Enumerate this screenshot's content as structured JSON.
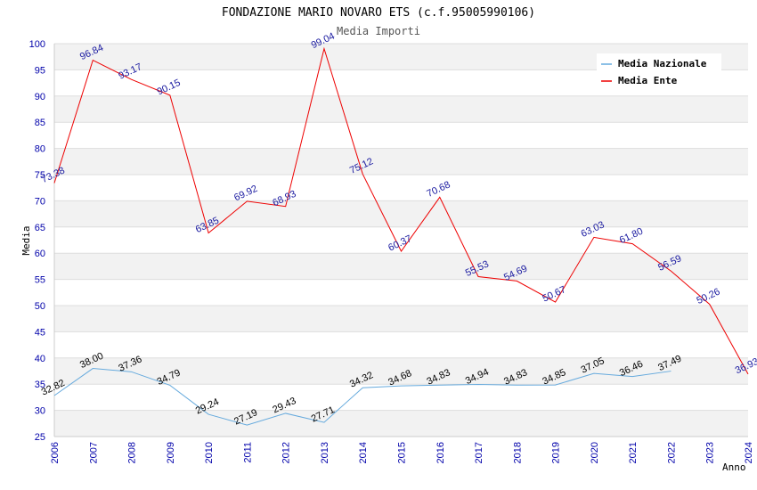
{
  "chart_data": {
    "type": "line",
    "title": "FONDAZIONE MARIO NOVARO ETS (c.f.95005990106)",
    "subtitle": "Media Importi",
    "xlabel": "Anno",
    "ylabel": "Media",
    "ylim": [
      25,
      100
    ],
    "yticks": [
      "25",
      "30",
      "35",
      "40",
      "45",
      "50",
      "55",
      "60",
      "65",
      "70",
      "75",
      "80",
      "85",
      "90",
      "95",
      "100"
    ],
    "categories": [
      "2006",
      "2007",
      "2008",
      "2009",
      "2010",
      "2011",
      "2012",
      "2013",
      "2014",
      "2015",
      "2016",
      "2017",
      "2018",
      "2019",
      "2020",
      "2021",
      "2022",
      "2023",
      "2024"
    ],
    "legend_position": "top-right",
    "series": [
      {
        "name": "Media Nazionale",
        "color": "#66aadd",
        "values": [
          32.82,
          38.0,
          37.36,
          34.79,
          29.24,
          27.19,
          29.43,
          27.71,
          34.32,
          34.68,
          34.83,
          34.94,
          34.83,
          34.85,
          37.05,
          36.46,
          37.49,
          null,
          null
        ],
        "labels": [
          "32.82",
          "38.00",
          "37.36",
          "34.79",
          "29.24",
          "27.19",
          "29.43",
          "27.71",
          "34.32",
          "34.68",
          "34.83",
          "34.94",
          "34.83",
          "34.85",
          "37.05",
          "36.46",
          "37.49",
          "",
          ""
        ]
      },
      {
        "name": "Media Ente",
        "color": "#ee0000",
        "values": [
          73.38,
          96.84,
          93.17,
          90.15,
          63.85,
          69.92,
          68.93,
          99.04,
          75.12,
          60.37,
          70.68,
          55.53,
          54.69,
          50.67,
          63.03,
          61.8,
          56.59,
          50.26,
          36.93
        ],
        "labels": [
          "73.38",
          "96.84",
          "93.17",
          "90.15",
          "63.85",
          "69.92",
          "68.93",
          "99.04",
          "75.12",
          "60.37",
          "70.68",
          "55.53",
          "54.69",
          "50.67",
          "63.03",
          "61.80",
          "56.59",
          "50.26",
          "36.93"
        ]
      }
    ]
  }
}
